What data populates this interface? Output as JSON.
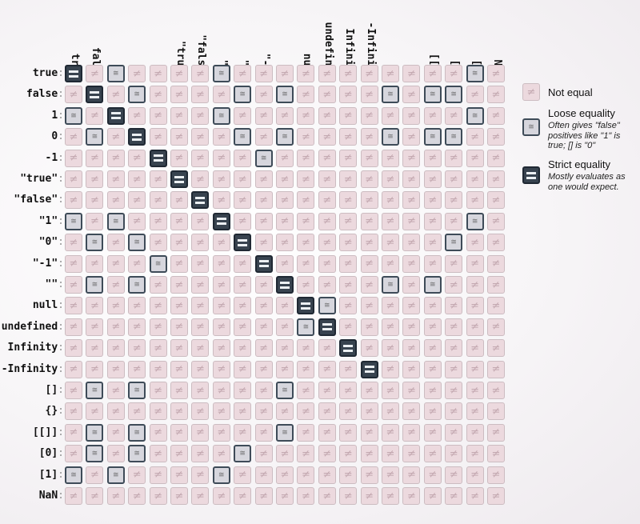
{
  "values": [
    "true",
    "false",
    "1",
    "0",
    "-1",
    "\"true\"",
    "\"false\"",
    "\"1\"",
    "\"0\"",
    "\"-1\"",
    "\"\"",
    "null",
    "undefined",
    "Infinity",
    "-Infinity",
    "[]",
    "{}",
    "[[]]",
    "[0]",
    "[1]",
    "NaN"
  ],
  "separator": ":",
  "symbols": {
    "not_equal": "≠",
    "loose": "≅"
  },
  "relations": [
    "SNLNNNNLNNNNNNNNNNNLN",
    "NSNLNNNNLNLNNNNLNLLNN",
    "LNSNNNNLNNNNNNNNNNNLN",
    "NLNSNNNNLNLNNNNLNLLNN",
    "NNNNSNNNNLNNNNNNNNNNN",
    "NNNNNSNNNNNNNNNNNNNNN",
    "NNNNNNSNNNNNNNNNNNNNN",
    "LNLNNNNSNNNNNNNNNNNLN",
    "NLNLNNNNSNNNNNNNNNLNN",
    "NNNNLNNNNSNNNNNNNNNNN",
    "NLNLNNNNNNSNNNNLNLNNN",
    "NNNNNNNNNNNSLNNNNNNNN",
    "NNNNNNNNNNNLSNNNNNNNN",
    "NNNNNNNNNNNNNSNNNNNNN",
    "NNNNNNNNNNNNNNSNNNNNN",
    "NLNLNNNNNNLNNNNNNNNNN",
    "NNNNNNNNNNNNNNNNNNNNN",
    "NLNLNNNNNNLNNNNNNNNNN",
    "NLNLNNNNLNNNNNNNNNNNN",
    "LNLNNNNLNNNNNNNNNNNNN",
    "NNNNNNNNNNNNNNNNNNNNN"
  ],
  "legend": {
    "not_equal": {
      "title": "Not equal"
    },
    "loose": {
      "title": "Loose equality",
      "description": "Often gives \"false\" positives like \"1\" is true; [] is \"0\""
    },
    "strict": {
      "title": "Strict equality",
      "description": "Mostly evaluates as one would expect."
    }
  },
  "colors": {
    "not_equal_fill": "#ecd9de",
    "loose_fill": "#d6d6dd",
    "strict_fill": "#38434f",
    "outline": "#3e4b58"
  }
}
